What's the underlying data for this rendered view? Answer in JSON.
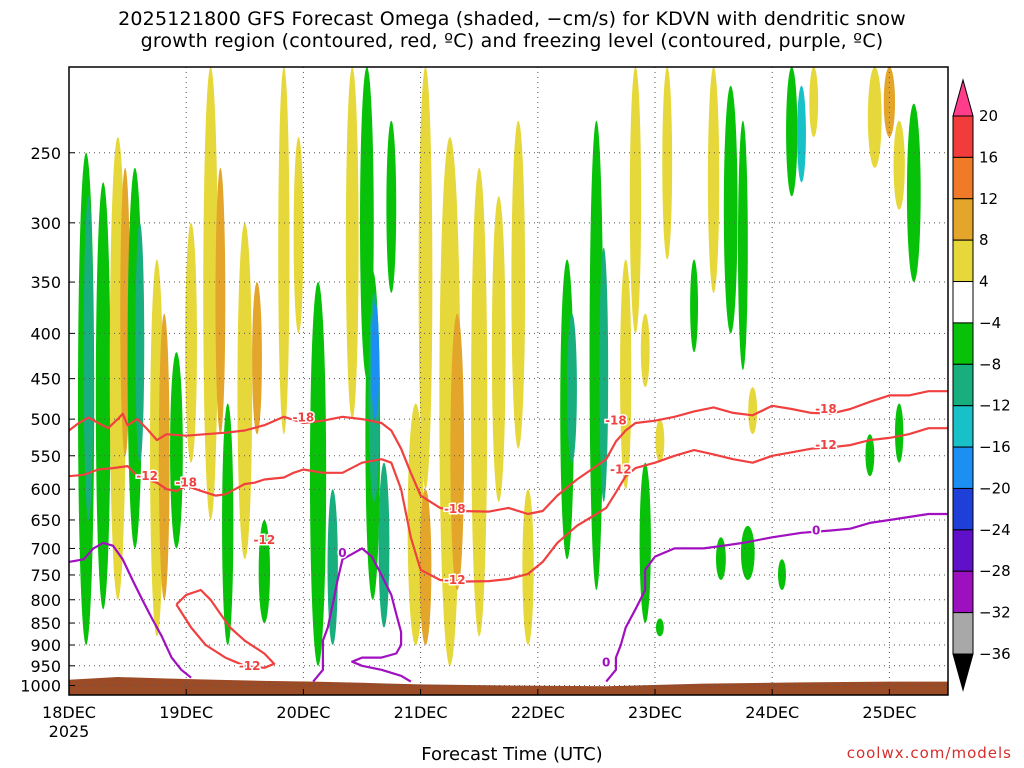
{
  "title": {
    "line1": "2025121800 GFS Forecast Omega (shaded, −cm/s) for KDVN with dendritic snow",
    "line2": "growth region (contoured, red, ºC) and freezing level (contoured, purple, ºC)"
  },
  "credit": "coolwx.com/models",
  "chart_data": {
    "type": "heatmap",
    "xlabel": "Forecast Time (UTC)",
    "ylabel": "",
    "x_range_hours": [
      0,
      180
    ],
    "x_ticks": [
      {
        "hour": 0,
        "label": "18DEC",
        "sublabel": "2025"
      },
      {
        "hour": 24,
        "label": "19DEC"
      },
      {
        "hour": 48,
        "label": "20DEC"
      },
      {
        "hour": 72,
        "label": "21DEC"
      },
      {
        "hour": 96,
        "label": "22DEC"
      },
      {
        "hour": 120,
        "label": "23DEC"
      },
      {
        "hour": 144,
        "label": "24DEC"
      },
      {
        "hour": 168,
        "label": "25DEC"
      }
    ],
    "y_range_hpa": [
      200,
      1025
    ],
    "y_scale": "log",
    "y_ticks": [
      250,
      300,
      350,
      400,
      450,
      500,
      550,
      600,
      650,
      700,
      750,
      800,
      850,
      900,
      950,
      1000
    ],
    "colorbar": {
      "labels": [
        "20",
        "16",
        "12",
        "8",
        "4",
        "−4",
        "−8",
        "−12",
        "−16",
        "−20",
        "−24",
        "−28",
        "−32",
        "−36"
      ],
      "colors": [
        "#ff3d8a",
        "#f23c3c",
        "#f07a28",
        "#e3a62a",
        "#e6d83a",
        "#ffffff",
        "#08c20a",
        "#18ae7e",
        "#18c0c8",
        "#1c8ff2",
        "#1e3fd8",
        "#6010c8",
        "#9c10c0",
        "#a8a8a8",
        "#000000"
      ]
    },
    "terrain_color": "#9b4b25",
    "series": [
      {
        "name": "-18",
        "color": "#f04040",
        "points": [
          [
            0,
            515
          ],
          [
            2,
            505
          ],
          [
            4,
            498
          ],
          [
            6,
            505
          ],
          [
            8,
            512
          ],
          [
            10,
            500
          ],
          [
            11,
            493
          ],
          [
            12,
            508
          ],
          [
            14,
            500
          ],
          [
            16,
            513
          ],
          [
            18,
            528
          ],
          [
            20,
            520
          ],
          [
            24,
            522
          ],
          [
            28,
            520
          ],
          [
            32,
            518
          ],
          [
            36,
            515
          ],
          [
            40,
            508
          ],
          [
            44,
            497
          ],
          [
            48,
            505
          ],
          [
            52,
            502
          ],
          [
            56,
            497
          ],
          [
            60,
            500
          ],
          [
            64,
            505
          ],
          [
            66,
            515
          ],
          [
            68,
            540
          ],
          [
            70,
            575
          ],
          [
            72,
            610
          ],
          [
            76,
            630
          ],
          [
            80,
            635
          ],
          [
            86,
            636
          ],
          [
            90,
            630
          ],
          [
            94,
            640
          ],
          [
            97,
            635
          ],
          [
            100,
            610
          ],
          [
            104,
            585
          ],
          [
            108,
            565
          ],
          [
            110,
            555
          ],
          [
            112,
            530
          ],
          [
            114,
            515
          ],
          [
            116,
            505
          ],
          [
            120,
            502
          ],
          [
            124,
            497
          ],
          [
            128,
            490
          ],
          [
            132,
            485
          ],
          [
            136,
            492
          ],
          [
            140,
            495
          ],
          [
            144,
            483
          ],
          [
            148,
            487
          ],
          [
            152,
            492
          ],
          [
            156,
            493
          ],
          [
            160,
            487
          ],
          [
            164,
            478
          ],
          [
            168,
            470
          ],
          [
            172,
            470
          ],
          [
            176,
            465
          ],
          [
            180,
            465
          ]
        ]
      },
      {
        "name": "-12",
        "color": "#f04040",
        "points": [
          [
            0,
            580
          ],
          [
            3,
            578
          ],
          [
            6,
            570
          ],
          [
            9,
            568
          ],
          [
            12,
            565
          ],
          [
            14,
            580
          ],
          [
            18,
            590
          ],
          [
            20,
            600
          ],
          [
            22,
            603
          ],
          [
            24,
            595
          ],
          [
            26,
            600
          ],
          [
            28,
            605
          ],
          [
            30,
            610
          ],
          [
            32,
            608
          ],
          [
            34,
            600
          ],
          [
            36,
            592
          ],
          [
            38,
            590
          ],
          [
            40,
            585
          ],
          [
            44,
            582
          ],
          [
            46,
            575
          ],
          [
            48,
            570
          ],
          [
            52,
            575
          ],
          [
            56,
            575
          ],
          [
            60,
            560
          ],
          [
            64,
            555
          ],
          [
            66,
            560
          ],
          [
            68,
            600
          ],
          [
            70,
            680
          ],
          [
            72,
            740
          ],
          [
            76,
            760
          ],
          [
            80,
            763
          ],
          [
            86,
            762
          ],
          [
            90,
            758
          ],
          [
            94,
            748
          ],
          [
            97,
            725
          ],
          [
            100,
            690
          ],
          [
            104,
            660
          ],
          [
            108,
            640
          ],
          [
            110,
            630
          ],
          [
            112,
            605
          ],
          [
            114,
            580
          ],
          [
            116,
            568
          ],
          [
            120,
            560
          ],
          [
            124,
            550
          ],
          [
            128,
            542
          ],
          [
            132,
            548
          ],
          [
            136,
            555
          ],
          [
            140,
            560
          ],
          [
            144,
            550
          ],
          [
            148,
            545
          ],
          [
            152,
            540
          ],
          [
            156,
            538
          ],
          [
            160,
            535
          ],
          [
            164,
            528
          ],
          [
            168,
            525
          ],
          [
            172,
            520
          ],
          [
            176,
            512
          ],
          [
            180,
            512
          ]
        ]
      },
      {
        "name": "-12 cell",
        "color": "#f04040",
        "points": [
          [
            22,
            810
          ],
          [
            24,
            790
          ],
          [
            27,
            780
          ],
          [
            29,
            800
          ],
          [
            31,
            830
          ],
          [
            33,
            860
          ],
          [
            36,
            890
          ],
          [
            40,
            920
          ],
          [
            42,
            945
          ],
          [
            40,
            955
          ],
          [
            36,
            950
          ],
          [
            32,
            930
          ],
          [
            28,
            900
          ],
          [
            25,
            860
          ],
          [
            22,
            810
          ]
        ]
      },
      {
        "name": "0",
        "color": "#a010c0",
        "points": [
          [
            0,
            725
          ],
          [
            3,
            720
          ],
          [
            5,
            700
          ],
          [
            7,
            690
          ],
          [
            9,
            695
          ],
          [
            11,
            720
          ],
          [
            13,
            760
          ],
          [
            15,
            800
          ],
          [
            17,
            840
          ],
          [
            19,
            880
          ],
          [
            21,
            930
          ],
          [
            23,
            960
          ],
          [
            25,
            980
          ]
        ]
      },
      {
        "name": "0 mid",
        "color": "#a010c0",
        "points": [
          [
            50,
            990
          ],
          [
            52,
            960
          ],
          [
            52,
            930
          ],
          [
            52,
            890
          ],
          [
            53,
            860
          ],
          [
            54,
            810
          ],
          [
            55,
            760
          ],
          [
            56,
            720
          ],
          [
            58,
            710
          ],
          [
            60,
            700
          ],
          [
            62,
            715
          ],
          [
            64,
            750
          ],
          [
            66,
            790
          ],
          [
            67,
            830
          ],
          [
            68,
            870
          ],
          [
            68,
            900
          ],
          [
            67,
            920
          ],
          [
            64,
            930
          ],
          [
            60,
            930
          ],
          [
            58,
            940
          ],
          [
            60,
            950
          ],
          [
            64,
            960
          ],
          [
            68,
            975
          ],
          [
            70,
            990
          ]
        ]
      },
      {
        "name": "0 east",
        "color": "#a010c0",
        "points": [
          [
            110,
            990
          ],
          [
            112,
            960
          ],
          [
            112,
            930
          ],
          [
            113,
            900
          ],
          [
            114,
            860
          ],
          [
            116,
            820
          ],
          [
            118,
            780
          ],
          [
            118,
            740
          ],
          [
            120,
            715
          ],
          [
            124,
            700
          ],
          [
            130,
            700
          ],
          [
            134,
            695
          ],
          [
            138,
            690
          ],
          [
            144,
            680
          ],
          [
            150,
            672
          ],
          [
            156,
            668
          ],
          [
            160,
            665
          ],
          [
            164,
            655
          ],
          [
            168,
            650
          ],
          [
            172,
            645
          ],
          [
            176,
            640
          ],
          [
            180,
            640
          ]
        ]
      }
    ],
    "contour_labels": [
      {
        "text": "-18",
        "hour": 48,
        "hpa": 498
      },
      {
        "text": "-18",
        "hour": 24,
        "hpa": 590
      },
      {
        "text": "-18",
        "hour": 79,
        "hpa": 632
      },
      {
        "text": "-18",
        "hour": 112,
        "hpa": 502
      },
      {
        "text": "-18",
        "hour": 155,
        "hpa": 487
      },
      {
        "text": "-12",
        "hour": 16,
        "hpa": 580
      },
      {
        "text": "-12",
        "hour": 40,
        "hpa": 685
      },
      {
        "text": "-12",
        "hour": 79,
        "hpa": 760
      },
      {
        "text": "-12",
        "hour": 113,
        "hpa": 570
      },
      {
        "text": "-12",
        "hour": 155,
        "hpa": 535
      },
      {
        "text": "-12",
        "hour": 37,
        "hpa": 950
      },
      {
        "text": "0",
        "hour": 56,
        "hpa": 708
      },
      {
        "text": "0",
        "hour": 110,
        "hpa": 942
      },
      {
        "text": "0",
        "hour": 153,
        "hpa": 668
      }
    ]
  }
}
